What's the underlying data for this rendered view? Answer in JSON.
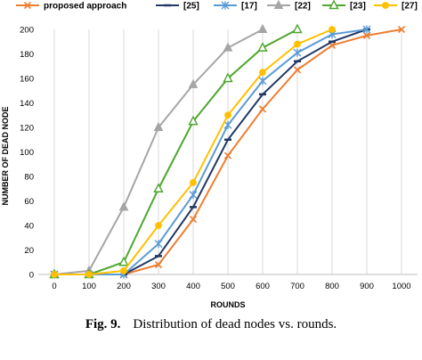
{
  "chart_data": {
    "type": "line",
    "xlabel": "ROUNDS",
    "ylabel": "NUMBER OF DEAD NODE",
    "xlim": [
      0,
      1000
    ],
    "ylim": [
      0,
      200
    ],
    "x_ticks": [
      0,
      100,
      200,
      300,
      400,
      500,
      600,
      700,
      800,
      900,
      1000
    ],
    "y_ticks": [
      0,
      20,
      40,
      60,
      80,
      100,
      120,
      140,
      160,
      180,
      200
    ],
    "grid": "vertical",
    "legend_position": "top",
    "series": [
      {
        "name": "proposed approach",
        "color": "#ED7D31",
        "marker": "x",
        "points": [
          [
            0,
            0
          ],
          [
            100,
            0
          ],
          [
            200,
            0
          ],
          [
            300,
            8
          ],
          [
            400,
            45
          ],
          [
            500,
            97
          ],
          [
            600,
            135
          ],
          [
            700,
            167
          ],
          [
            800,
            187
          ],
          [
            900,
            195
          ],
          [
            1000,
            200
          ]
        ]
      },
      {
        "name": "[25]",
        "color": "#203864",
        "marker": "dash",
        "points": [
          [
            0,
            0
          ],
          [
            100,
            0
          ],
          [
            200,
            0
          ],
          [
            300,
            15
          ],
          [
            400,
            55
          ],
          [
            500,
            110
          ],
          [
            600,
            147
          ],
          [
            700,
            174
          ],
          [
            800,
            190
          ],
          [
            900,
            200
          ]
        ]
      },
      {
        "name": "[17]",
        "color": "#5B9BD5",
        "marker": "star",
        "points": [
          [
            0,
            0
          ],
          [
            100,
            0
          ],
          [
            200,
            0
          ],
          [
            300,
            25
          ],
          [
            400,
            65
          ],
          [
            500,
            122
          ],
          [
            600,
            158
          ],
          [
            700,
            181
          ],
          [
            800,
            196
          ],
          [
            900,
            200
          ]
        ]
      },
      {
        "name": "[22]",
        "color": "#A5A5A5",
        "marker": "triangle",
        "points": [
          [
            0,
            0
          ],
          [
            100,
            3
          ],
          [
            200,
            55
          ],
          [
            300,
            120
          ],
          [
            400,
            155
          ],
          [
            500,
            185
          ],
          [
            600,
            200
          ]
        ]
      },
      {
        "name": "[23]",
        "color": "#4EA72E",
        "marker": "triangle-open",
        "points": [
          [
            0,
            0
          ],
          [
            100,
            0
          ],
          [
            200,
            10
          ],
          [
            300,
            70
          ],
          [
            400,
            125
          ],
          [
            500,
            160
          ],
          [
            600,
            185
          ],
          [
            700,
            200
          ]
        ]
      },
      {
        "name": "[27]",
        "color": "#FFC000",
        "marker": "circle",
        "points": [
          [
            0,
            0
          ],
          [
            100,
            0
          ],
          [
            200,
            3
          ],
          [
            300,
            40
          ],
          [
            400,
            75
          ],
          [
            500,
            130
          ],
          [
            600,
            165
          ],
          [
            700,
            188
          ],
          [
            800,
            200
          ]
        ]
      }
    ]
  },
  "caption": {
    "label": "Fig. 9.",
    "text": "Distribution of dead nodes vs. rounds."
  }
}
